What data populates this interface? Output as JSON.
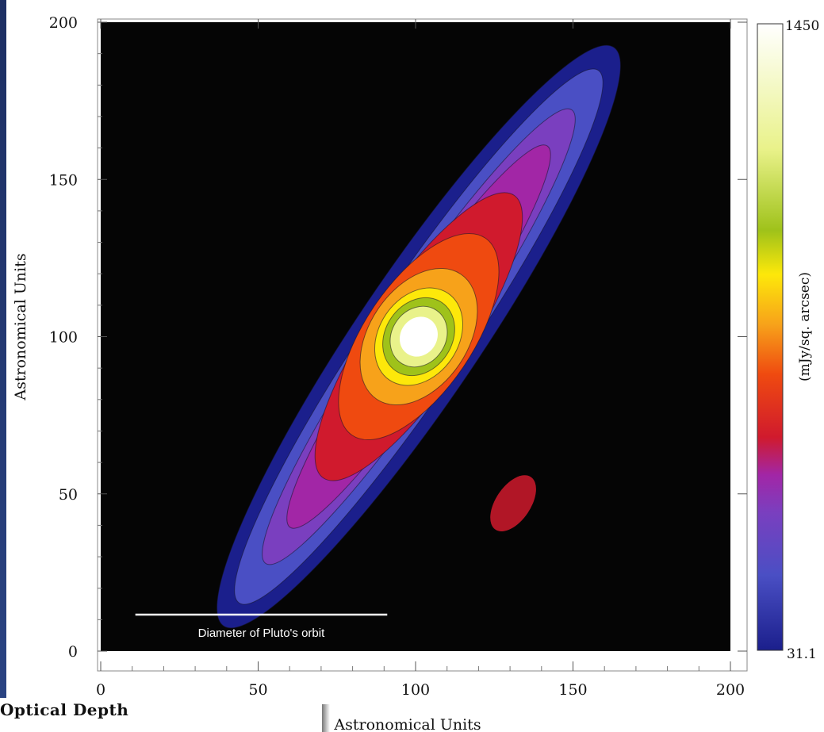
{
  "chart_data": {
    "type": "heatmap",
    "title": "",
    "xlabel": "Astronomical Units",
    "ylabel": "Astronomical Units",
    "xlim": [
      0,
      200
    ],
    "ylim": [
      0,
      200
    ],
    "x_ticks": [
      "0",
      "50",
      "100",
      "150",
      "200"
    ],
    "y_ticks": [
      "0",
      "50",
      "100",
      "150",
      "200"
    ],
    "colorbar": {
      "label": "(mJy/sq. arcsec)",
      "min": 31.1,
      "max": 1450,
      "min_label": "31.1",
      "max_label": "1450"
    },
    "annotation": "Diameter of Pluto's orbit",
    "scale_bar_x": [
      11,
      91
    ],
    "peak": {
      "x": 101,
      "y": 100
    },
    "disk_position_angle_deg": 124,
    "grid": false,
    "corner_text": "Optical Depth",
    "colors": {
      "background": "#050505",
      "colormap": [
        "#1b1f8c",
        "#4a4fc4",
        "#7a3fbf",
        "#a226a6",
        "#d01a2d",
        "#ef4a10",
        "#f7a21a",
        "#fde80a",
        "#9fc21a",
        "#e9f28a",
        "#ffffff"
      ]
    }
  }
}
